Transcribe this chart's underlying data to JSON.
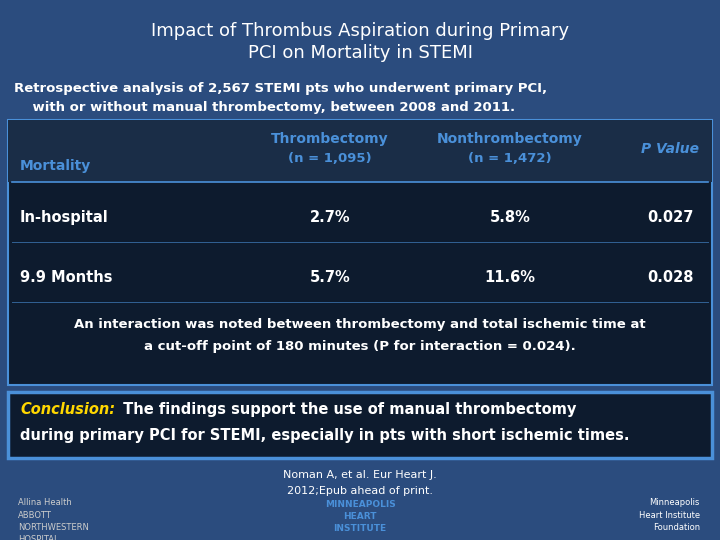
{
  "bg_color": "#2B4C7E",
  "title_line1": "Impact of Thrombus Aspiration during Primary",
  "title_line2": "PCI on Mortality in STEMI",
  "title_color": "#FFFFFF",
  "subtitle_line1": "Retrospective analysis of 2,567 STEMI pts who underwent primary PCI,",
  "subtitle_line2": "    with or without manual thrombectomy, between 2008 and 2011.",
  "subtitle_color": "#FFFFFF",
  "table_bg": "#0D1B2E",
  "table_header_bg": "#1A2D47",
  "header_col1": "Mortality",
  "header_col2_line1": "Thrombectomy",
  "header_col2_line2": "(n = 1,095)",
  "header_col3_line1": "Nonthrombectomy",
  "header_col3_line2": "(n = 1,472)",
  "header_col4": "P Value",
  "header_color": "#4A90D9",
  "row1_col1": "In-hospital",
  "row1_col2": "2.7%",
  "row1_col3": "5.8%",
  "row1_col4": "0.027",
  "row2_col1": "9.9 Months",
  "row2_col2": "5.7%",
  "row2_col3": "11.6%",
  "row2_col4": "0.028",
  "row_text_color": "#FFFFFF",
  "interaction_line1": "An interaction was noted between thrombectomy and total ischemic time at",
  "interaction_line2a": "a cut-off point of 180 minutes (",
  "interaction_line2b": "P",
  "interaction_line2c": " for interaction = 0.024).",
  "interaction_color": "#FFFFFF",
  "conclusion_box_bg": "#0D1B2E",
  "conclusion_border": "#4A90D9",
  "conclusion_label": "Conclusion:",
  "conclusion_label_color": "#FFD700",
  "conclusion_text1": " The findings support the use of manual thrombectomy",
  "conclusion_text2": "during primary PCI for STEMI, especially in pts with short ischemic times.",
  "conclusion_text_color": "#FFFFFF",
  "citation_line1": "Noman A, et al. ",
  "citation_line1b": "Eur Heart J.",
  "citation_line2": "2012;Epub ahead of print.",
  "citation_color": "#FFFFFF",
  "divider_color": "#4A90D9",
  "footer_left": "Allina Health\nABBOTT\nNORTHWESTERN\nHOSPITAL",
  "footer_mid": "MINNEAPOLIS\nHEART\nINSTITUTE",
  "footer_right": "Minneapolis\nHeart Institute\nFoundation"
}
